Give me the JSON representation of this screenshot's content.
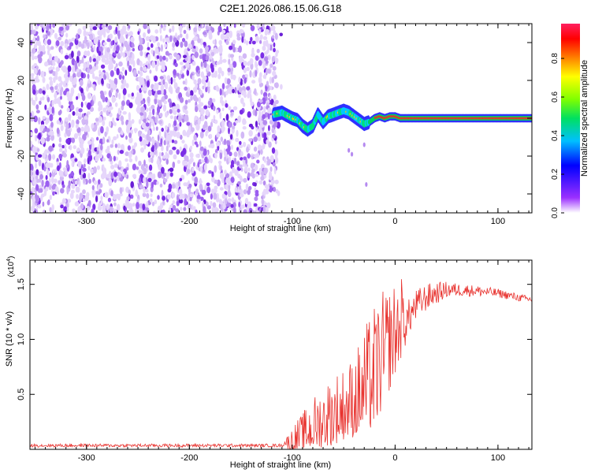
{
  "title": "C2E1.2026.086.15.06.G18",
  "colors": {
    "snr_line": "#e8322e",
    "spectrum_low": "#8a2be2",
    "axis": "#000000"
  },
  "chart_data": [
    {
      "type": "heatmap",
      "name": "spectrogram",
      "xlabel": "Height of straight line (km)",
      "ylabel": "Frequency (Hz)",
      "xlim": [
        -355,
        133
      ],
      "ylim": [
        -50,
        50
      ],
      "xticks": [
        -300,
        -200,
        -100,
        0,
        100
      ],
      "yticks": [
        -40,
        -20,
        0,
        20,
        40
      ],
      "xtick_labels": [
        "-300",
        "-200",
        "-100",
        "0",
        "100"
      ],
      "ytick_labels": [
        "-40",
        "-20",
        "0",
        "20",
        "40"
      ],
      "noise_region": [
        -355,
        -115
      ],
      "signal_track": {
        "x": [
          -118,
          -110,
          -100,
          -95,
          -90,
          -85,
          -80,
          -75,
          -70,
          -65,
          -60,
          -55,
          -50,
          -45,
          -40,
          -35,
          -30,
          -25,
          -20,
          -15,
          -10,
          -5,
          0,
          5,
          133
        ],
        "freq": [
          2,
          3,
          0,
          -1,
          -4,
          -6,
          -4,
          2,
          -2,
          1,
          2,
          3,
          4,
          3,
          1,
          -1,
          -3,
          -2,
          0,
          1,
          0,
          1,
          1,
          0,
          0
        ]
      },
      "faint_points": [
        [
          -45,
          -17
        ],
        [
          -42,
          -19
        ],
        [
          -30,
          -14
        ],
        [
          -28,
          -35
        ]
      ],
      "colorbar": {
        "label": "Normalized spectral amplitude",
        "ticks": [
          "0.0",
          "0.2",
          "0.4",
          "0.6",
          "0.8"
        ],
        "tick_values": [
          0,
          0.2,
          0.4,
          0.6,
          0.8
        ],
        "range": [
          0,
          0.98
        ]
      }
    },
    {
      "type": "line",
      "name": "snr",
      "xlabel": "Height of straight line (km)",
      "ylabel": "SNR (10 * v/v)",
      "scale_label": "(x10",
      "scale_exp": "4",
      "scale_close": ")",
      "xlim": [
        -355,
        133
      ],
      "ylim": [
        0,
        1.72
      ],
      "xticks": [
        -300,
        -200,
        -100,
        0,
        100
      ],
      "yticks": [
        0.5,
        1.0,
        1.5
      ],
      "xtick_labels": [
        "-300",
        "-200",
        "-100",
        "0",
        "100"
      ],
      "ytick_labels": [
        "0.5",
        "1.0",
        "1.5"
      ],
      "envelope": {
        "x": [
          -355,
          -110,
          -100,
          -90,
          -80,
          -70,
          -60,
          -50,
          -40,
          -30,
          -20,
          -10,
          0,
          10,
          20,
          30,
          40,
          50,
          60,
          80,
          100,
          120,
          133
        ],
        "base": [
          0.02,
          0.02,
          0.05,
          0.1,
          0.15,
          0.2,
          0.25,
          0.3,
          0.35,
          0.45,
          0.55,
          0.75,
          0.95,
          1.15,
          1.3,
          1.38,
          1.42,
          1.45,
          1.45,
          1.44,
          1.42,
          1.38,
          1.36
        ],
        "spread": [
          0.03,
          0.03,
          0.12,
          0.18,
          0.25,
          0.3,
          0.35,
          0.35,
          0.4,
          0.5,
          0.6,
          0.55,
          0.45,
          0.35,
          0.3,
          0.25,
          0.2,
          0.15,
          0.12,
          0.1,
          0.08,
          0.07,
          0.06
        ]
      }
    }
  ]
}
